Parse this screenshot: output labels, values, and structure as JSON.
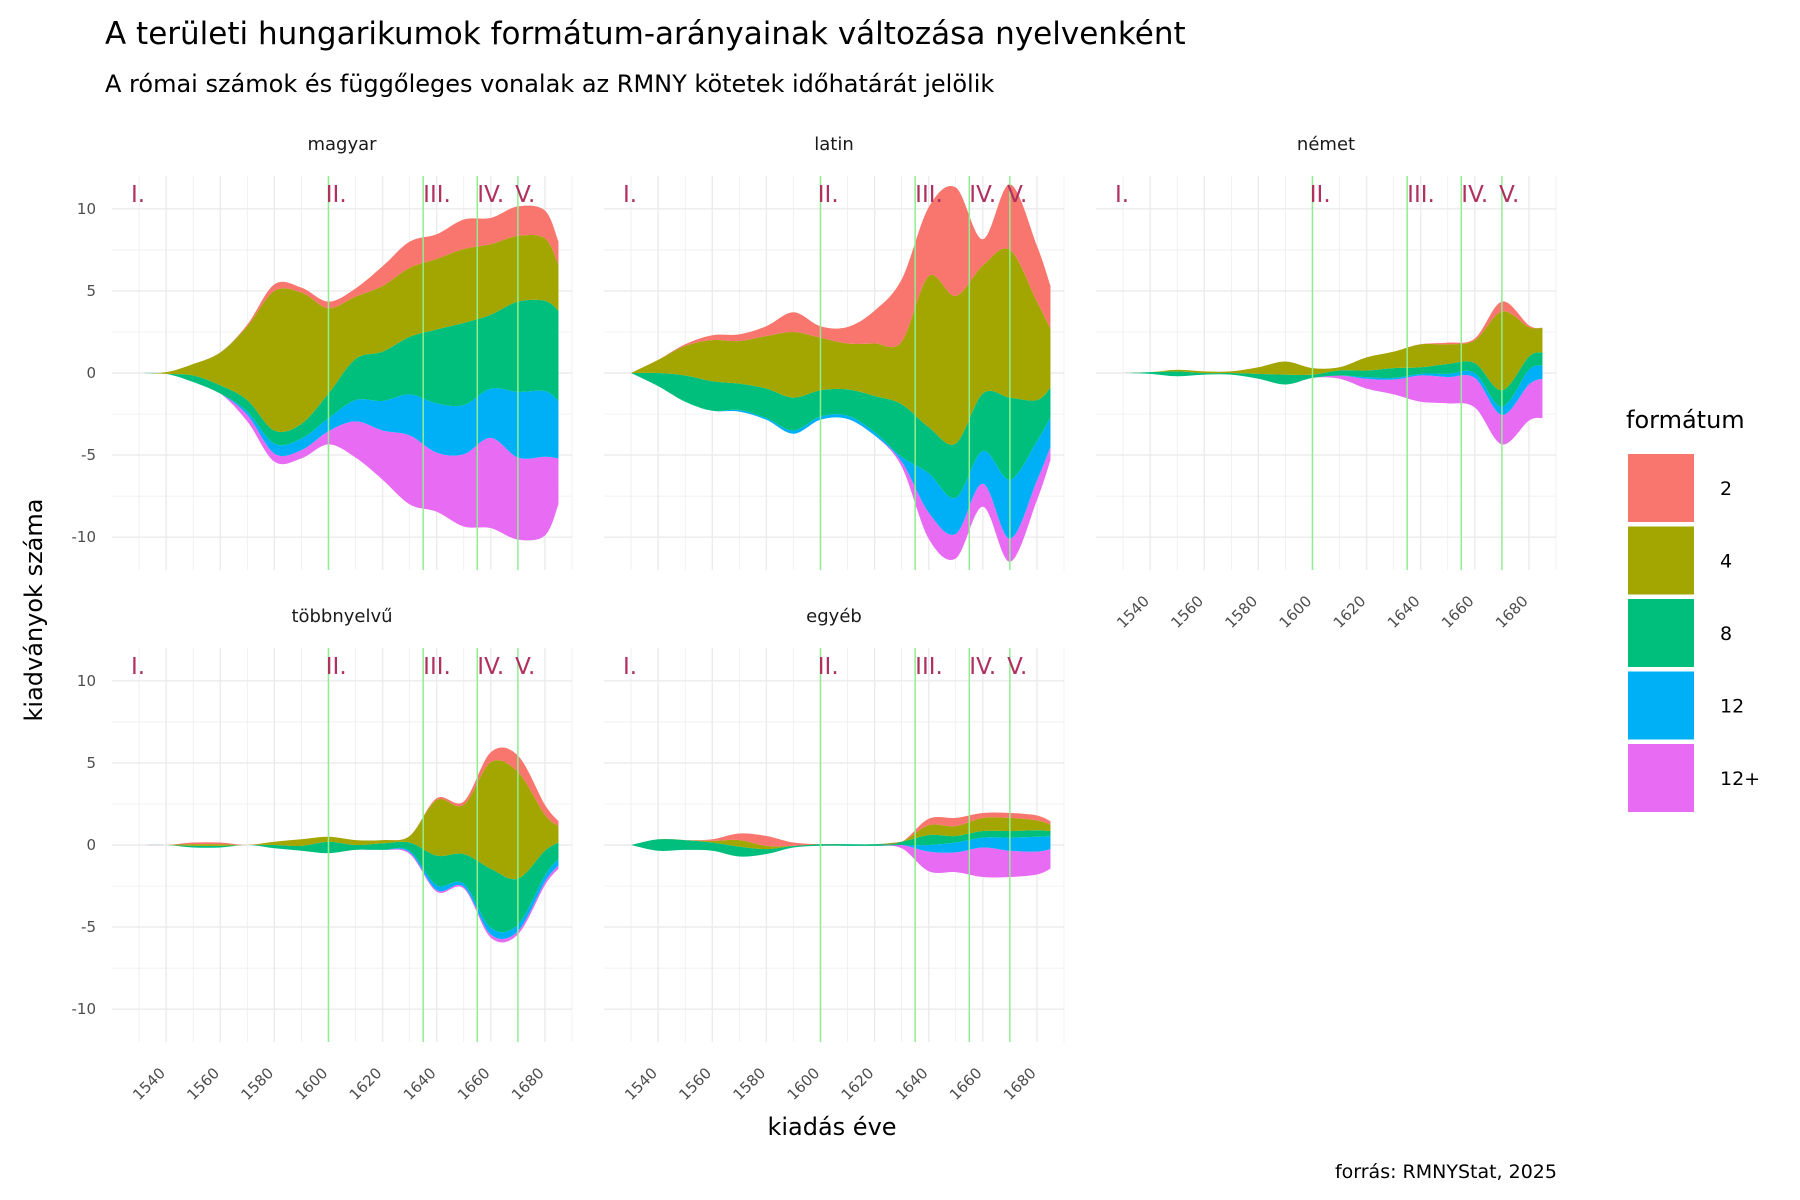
{
  "chart_data": {
    "type": "area",
    "title": "A területi hungarikumok formátum-arányainak változása nyelvenként",
    "subtitle": "A római számok és függőleges vonalak az RMNY kötetek időhatárát jelölik",
    "xlabel": "kiadás éve",
    "ylabel": "kiadványok száma",
    "caption": "forrás: RMNYStat, 2025",
    "xlim": [
      1520,
      1690
    ],
    "ylim": [
      -12,
      12
    ],
    "x_ticks": [
      1540,
      1560,
      1580,
      1600,
      1620,
      1640,
      1660,
      1680
    ],
    "y_ticks": [
      -10,
      -5,
      0,
      5,
      10
    ],
    "grid": true,
    "legend": {
      "title": "formátum",
      "position": "right",
      "entries": [
        "2",
        "4",
        "8",
        "12",
        "12+"
      ]
    },
    "colors": {
      "2": "#F8766D",
      "4": "#A3A500",
      "8": "#00BF7D",
      "12": "#00B0F6",
      "12+": "#E76BF3"
    },
    "volume_boundaries": {
      "labels": [
        "I.",
        "II.",
        "III.",
        "IV.",
        "V."
      ],
      "label_years": [
        1527,
        1599,
        1635,
        1655,
        1669
      ],
      "line_years": [
        1600,
        1635,
        1655,
        1670
      ],
      "line_color": "#90EE90",
      "label_color": "#B03060"
    },
    "x": [
      1530,
      1540,
      1550,
      1560,
      1570,
      1580,
      1590,
      1600,
      1610,
      1620,
      1630,
      1640,
      1650,
      1660,
      1670,
      1680,
      1685
    ],
    "panels": [
      {
        "name": "magyar",
        "series": [
          {
            "name": "2",
            "values": [
              0,
              0,
              0,
              0,
              0.1,
              0.4,
              0.3,
              0.4,
              0.5,
              1.2,
              1.6,
              1.5,
              1.8,
              1.6,
              1.8,
              1.7,
              1.4
            ]
          },
          {
            "name": "4",
            "values": [
              0,
              0.1,
              0.7,
              2,
              4.5,
              8.5,
              8,
              5.2,
              3.8,
              4,
              4.2,
              4.3,
              4.5,
              4.3,
              4,
              3.8,
              2.8
            ]
          },
          {
            "name": "8",
            "values": [
              0,
              0,
              0.4,
              0.5,
              0.7,
              0.8,
              0.9,
              1.5,
              2.5,
              3,
              3.5,
              4.5,
              5,
              4.5,
              5.5,
              5.5,
              5.5
            ]
          },
          {
            "name": "12",
            "values": [
              0,
              0,
              0,
              0,
              0.2,
              0.6,
              0.7,
              0.8,
              1.3,
              1.8,
              2.5,
              3,
              3,
              3,
              4,
              4,
              3.5
            ]
          },
          {
            "name": "12+",
            "values": [
              0,
              0,
              0,
              0,
              0.4,
              0.5,
              0.5,
              0.8,
              2.2,
              3,
              4.2,
              3.6,
              4.4,
              5.5,
              5,
              4.8,
              2.8
            ]
          }
        ]
      },
      {
        "name": "latin",
        "series": [
          {
            "name": "2",
            "values": [
              0,
              0,
              0.1,
              0.3,
              0.4,
              0.6,
              1.2,
              0.7,
              1.0,
              2.0,
              3.8,
              4.2,
              6.6,
              1.6,
              4.0,
              3.4,
              2.6
            ]
          },
          {
            "name": "4",
            "values": [
              0,
              0.8,
              1.8,
              2.5,
              2.6,
              3.2,
              4.0,
              3.2,
              2.8,
              3.2,
              3.8,
              9.2,
              9.0,
              7.8,
              9.0,
              6.0,
              3.6
            ]
          },
          {
            "name": "8",
            "values": [
              0,
              0.8,
              1.6,
              1.8,
              1.6,
              1.8,
              2.0,
              1.6,
              1.6,
              2.2,
              3.2,
              2.8,
              3.3,
              3.5,
              5.0,
              2.5,
              1.8
            ]
          },
          {
            "name": "12",
            "values": [
              0,
              0,
              0,
              0,
              0.1,
              0.1,
              0.2,
              0.2,
              0.2,
              0.2,
              0.3,
              2.4,
              2.2,
              2.0,
              3.6,
              2.4,
              1.8
            ]
          },
          {
            "name": "12+",
            "values": [
              0,
              0,
              0,
              0,
              0,
              0,
              0,
              0,
              0,
              0,
              0.3,
              1.6,
              1.5,
              1.4,
              1.4,
              1.2,
              0.8
            ]
          }
        ]
      },
      {
        "name": "német",
        "series": [
          {
            "name": "2",
            "values": [
              0,
              0,
              0,
              0,
              0,
              0,
              0,
              0,
              0,
              0,
              0,
              0,
              0.1,
              0.1,
              0.6,
              0.1,
              0
            ]
          },
          {
            "name": "4",
            "values": [
              0,
              0,
              0.1,
              0.1,
              0.1,
              0.4,
              0.8,
              0.4,
              0.2,
              0.8,
              1.0,
              1.4,
              1.2,
              1.4,
              4.8,
              1.8,
              1.5
            ]
          },
          {
            "name": "8",
            "values": [
              0,
              0.1,
              0.3,
              0.1,
              0.1,
              0.3,
              0.6,
              0.2,
              0.3,
              0.4,
              0.6,
              0.4,
              0.6,
              0.6,
              1.0,
              0.8,
              0.8
            ]
          },
          {
            "name": "12",
            "values": [
              0,
              0,
              0,
              0,
              0,
              0,
              0,
              0,
              0,
              0.1,
              0.1,
              0.1,
              0.2,
              0.3,
              0.5,
              0.9,
              0.8
            ]
          },
          {
            "name": "12+",
            "values": [
              0,
              0,
              0,
              0,
              0,
              0,
              0,
              0,
              0.2,
              0.6,
              0.9,
              1.6,
              1.6,
              1.8,
              1.8,
              2.2,
              2.4
            ]
          }
        ]
      },
      {
        "name": "többnyelvű",
        "series": [
          {
            "name": "2",
            "values": [
              0,
              0,
              0.1,
              0.1,
              0,
              0,
              0,
              0,
              0,
              0,
              0,
              0.1,
              0.2,
              0.6,
              1.0,
              0.6,
              0.3
            ]
          },
          {
            "name": "4",
            "values": [
              0,
              0,
              0.1,
              0.1,
              0,
              0.2,
              0.4,
              0.3,
              0.3,
              0.2,
              0.4,
              3.4,
              3.0,
              6.5,
              6.5,
              2.2,
              1.0
            ]
          },
          {
            "name": "8",
            "values": [
              0,
              0,
              0.1,
              0.1,
              0,
              0.2,
              0.3,
              0.7,
              0.3,
              0.4,
              0.5,
              1.8,
              1.8,
              3.6,
              2.8,
              1.5,
              1.0
            ]
          },
          {
            "name": "12",
            "values": [
              0,
              0,
              0,
              0,
              0,
              0,
              0,
              0,
              0,
              0,
              0.1,
              0.3,
              0.2,
              0.4,
              0.4,
              0.4,
              0.4
            ]
          },
          {
            "name": "12+",
            "values": [
              0,
              0,
              0,
              0,
              0,
              0,
              0,
              0,
              0,
              0,
              0.1,
              0.1,
              0.1,
              0.2,
              0.2,
              0.2,
              0.2
            ]
          }
        ]
      },
      {
        "name": "egyéb",
        "series": [
          {
            "name": "2",
            "values": [
              0,
              0,
              0,
              0.1,
              0.4,
              0.6,
              0.2,
              0,
              0,
              0,
              0,
              0.4,
              0.5,
              0.3,
              0.3,
              0.3,
              0.2
            ]
          },
          {
            "name": "4",
            "values": [
              0,
              0,
              0,
              0.1,
              0.4,
              0.2,
              0,
              0,
              0,
              0,
              0,
              0.6,
              0.6,
              0.8,
              0.8,
              0.6,
              0.4
            ]
          },
          {
            "name": "8",
            "values": [
              0,
              0.7,
              0.6,
              0.5,
              0.6,
              0.3,
              0.1,
              0.1,
              0.1,
              0.1,
              0.2,
              0.6,
              0.4,
              0.4,
              0.4,
              0.4,
              0.3
            ]
          },
          {
            "name": "12",
            "values": [
              0,
              0,
              0,
              0,
              0,
              0,
              0,
              0,
              0,
              0,
              0,
              0.4,
              0.6,
              0.6,
              0.8,
              0.9,
              0.8
            ]
          },
          {
            "name": "12+",
            "values": [
              0,
              0,
              0,
              0,
              0,
              0,
              0,
              0,
              0,
              0,
              0.2,
              1.2,
              1.2,
              1.8,
              1.6,
              1.4,
              1.2
            ]
          }
        ]
      }
    ]
  }
}
